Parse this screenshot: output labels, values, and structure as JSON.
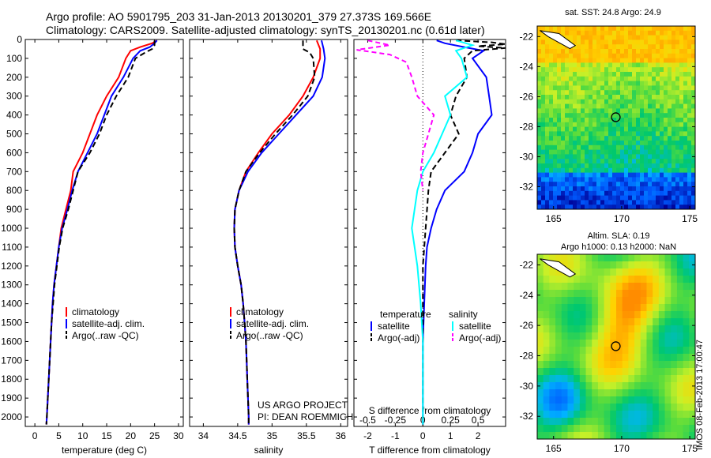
{
  "header": {
    "line1": "Argo profile: AO 5901795_203 31-Jan-2013 20130201_379 27.373S 169.566E",
    "line2": "Climatology: CARS2009. Satellite-adjusted climatology: synTS_20130201.nc (0.61d later)"
  },
  "footer": {
    "project": "US ARGO PROJECT",
    "pi": "PI: DEAN ROEMMICH",
    "stamp": "IMOS 08-Feb-2013 17:00:47"
  },
  "colors": {
    "red": "#ff0000",
    "blue": "#0000ff",
    "black": "#000000",
    "cyan": "#00ffff",
    "magenta": "#ff00ff"
  },
  "chart_data": [
    {
      "type": "line",
      "id": "temperature",
      "xlabel": "temperature (deg C)",
      "xlim": [
        -2,
        31
      ],
      "xticks": [
        0,
        5,
        10,
        15,
        20,
        25,
        30
      ],
      "ylim": [
        2050,
        0
      ],
      "yticks": [
        0,
        100,
        200,
        300,
        400,
        500,
        600,
        700,
        800,
        900,
        1000,
        1100,
        1200,
        1300,
        1400,
        1500,
        1600,
        1700,
        1800,
        1900,
        2000
      ],
      "legend": [
        "climatology",
        "satellite-adj. clim.",
        "Argo(..raw -QC)"
      ],
      "series": [
        {
          "name": "climatology",
          "color": "red",
          "dash": "",
          "points": [
            [
              25.5,
              5
            ],
            [
              24.5,
              20
            ],
            [
              22,
              40
            ],
            [
              20,
              60
            ],
            [
              19,
              100
            ],
            [
              17.5,
              200
            ],
            [
              15,
              300
            ],
            [
              13,
              400
            ],
            [
              11.5,
              500
            ],
            [
              10,
              600
            ],
            [
              8,
              700
            ],
            [
              7.5,
              800
            ],
            [
              6.5,
              900
            ],
            [
              5.5,
              1000
            ],
            [
              5,
              1100
            ],
            [
              4.5,
              1200
            ],
            [
              4,
              1300
            ],
            [
              3.7,
              1400
            ],
            [
              3.5,
              1500
            ],
            [
              3.3,
              1600
            ],
            [
              3.1,
              1700
            ],
            [
              2.9,
              1800
            ],
            [
              2.7,
              1900
            ],
            [
              2.5,
              2000
            ],
            [
              2.4,
              2040
            ]
          ]
        },
        {
          "name": "satellite-adj. clim.",
          "color": "blue",
          "dash": "",
          "points": [
            [
              25.5,
              5
            ],
            [
              25,
              20
            ],
            [
              24,
              40
            ],
            [
              22,
              60
            ],
            [
              20.5,
              100
            ],
            [
              18.5,
              200
            ],
            [
              16,
              300
            ],
            [
              14.5,
              400
            ],
            [
              13,
              500
            ],
            [
              11,
              600
            ],
            [
              9,
              700
            ],
            [
              7.8,
              800
            ],
            [
              6.8,
              900
            ],
            [
              5.7,
              1000
            ],
            [
              5,
              1100
            ],
            [
              4.5,
              1200
            ],
            [
              4,
              1300
            ],
            [
              3.7,
              1400
            ],
            [
              3.5,
              1500
            ],
            [
              3.3,
              1600
            ],
            [
              3.1,
              1700
            ],
            [
              2.9,
              1800
            ],
            [
              2.7,
              1900
            ],
            [
              2.5,
              2000
            ],
            [
              2.4,
              2040
            ]
          ]
        },
        {
          "name": "Argo(..raw -QC)",
          "color": "black",
          "dash": "7,4",
          "points": [
            [
              25,
              5
            ],
            [
              25,
              30
            ],
            [
              24.5,
              50
            ],
            [
              23,
              70
            ],
            [
              21,
              100
            ],
            [
              19.5,
              200
            ],
            [
              17,
              300
            ],
            [
              15,
              400
            ],
            [
              13.5,
              500
            ],
            [
              11.5,
              600
            ],
            [
              9,
              700
            ],
            [
              8,
              800
            ],
            [
              7,
              900
            ],
            [
              5.8,
              1000
            ],
            [
              5.1,
              1100
            ],
            [
              4.6,
              1200
            ],
            [
              4.1,
              1300
            ],
            [
              3.8,
              1400
            ],
            [
              3.5,
              1500
            ],
            [
              3.3,
              1600
            ],
            [
              3.1,
              1700
            ],
            [
              2.9,
              1800
            ],
            [
              2.7,
              1900
            ],
            [
              2.5,
              2000
            ],
            [
              2.4,
              2040
            ]
          ]
        }
      ]
    },
    {
      "type": "line",
      "id": "salinity",
      "xlabel": "salinity",
      "xlim": [
        33.8,
        36.1
      ],
      "xticks": [
        34,
        34.5,
        35,
        35.5,
        36
      ],
      "xtick_labels": [
        "34",
        "34.5",
        "35",
        "35.5",
        "36"
      ],
      "ylim": [
        2050,
        0
      ],
      "legend": [
        "climatology",
        "satellite-adj. clim.",
        "Argo(..raw -QC)"
      ],
      "series": [
        {
          "name": "climatology",
          "color": "red",
          "dash": "",
          "points": [
            [
              35.65,
              5
            ],
            [
              35.7,
              50
            ],
            [
              35.7,
              100
            ],
            [
              35.6,
              200
            ],
            [
              35.45,
              300
            ],
            [
              35.25,
              400
            ],
            [
              35.0,
              500
            ],
            [
              34.8,
              600
            ],
            [
              34.62,
              700
            ],
            [
              34.52,
              800
            ],
            [
              34.46,
              900
            ],
            [
              34.45,
              1000
            ],
            [
              34.46,
              1100
            ],
            [
              34.5,
              1200
            ],
            [
              34.55,
              1300
            ],
            [
              34.58,
              1400
            ],
            [
              34.6,
              1500
            ],
            [
              34.62,
              1600
            ],
            [
              34.63,
              1700
            ],
            [
              34.64,
              1800
            ],
            [
              34.65,
              1900
            ],
            [
              34.66,
              2000
            ],
            [
              34.66,
              2040
            ]
          ]
        },
        {
          "name": "satellite-adj. clim.",
          "color": "blue",
          "dash": "",
          "points": [
            [
              35.72,
              5
            ],
            [
              35.75,
              50
            ],
            [
              35.77,
              100
            ],
            [
              35.73,
              200
            ],
            [
              35.6,
              300
            ],
            [
              35.35,
              400
            ],
            [
              35.1,
              500
            ],
            [
              34.85,
              600
            ],
            [
              34.65,
              700
            ],
            [
              34.52,
              800
            ],
            [
              34.46,
              900
            ],
            [
              34.45,
              1000
            ],
            [
              34.46,
              1100
            ],
            [
              34.5,
              1200
            ],
            [
              34.55,
              1300
            ],
            [
              34.58,
              1400
            ],
            [
              34.6,
              1500
            ],
            [
              34.62,
              1600
            ],
            [
              34.63,
              1700
            ],
            [
              34.64,
              1800
            ],
            [
              34.65,
              1900
            ],
            [
              34.66,
              2000
            ],
            [
              34.66,
              2040
            ]
          ]
        },
        {
          "name": "Argo(..raw -QC)",
          "color": "black",
          "dash": "7,4",
          "points": [
            [
              35.45,
              5
            ],
            [
              35.45,
              50
            ],
            [
              35.55,
              70
            ],
            [
              35.6,
              100
            ],
            [
              35.62,
              200
            ],
            [
              35.52,
              300
            ],
            [
              35.3,
              400
            ],
            [
              35.05,
              500
            ],
            [
              34.82,
              600
            ],
            [
              34.62,
              700
            ],
            [
              34.52,
              800
            ],
            [
              34.46,
              900
            ],
            [
              34.45,
              1000
            ],
            [
              34.46,
              1100
            ],
            [
              34.5,
              1200
            ],
            [
              34.55,
              1300
            ],
            [
              34.58,
              1400
            ],
            [
              34.6,
              1500
            ],
            [
              34.62,
              1600
            ],
            [
              34.63,
              1700
            ],
            [
              34.64,
              1800
            ],
            [
              34.65,
              1900
            ],
            [
              34.66,
              2000
            ],
            [
              34.66,
              2040
            ]
          ]
        }
      ]
    },
    {
      "type": "line",
      "id": "difference",
      "xlabel": "T difference from climatology",
      "xlabel_top": "S difference from climatology",
      "xlim": [
        -2.5,
        3
      ],
      "xticks": [
        -2,
        -1,
        0,
        1,
        2
      ],
      "xticks_s": [
        -0.5,
        -0.25,
        0,
        0.25,
        0.5
      ],
      "xticks_s_labels": [
        "-0.5",
        "-0.25",
        "0",
        "0.25",
        "0.5"
      ],
      "legend_left": {
        "title": "temperature",
        "items": [
          "satellite",
          "Argo(-adj)"
        ]
      },
      "legend_right": {
        "title": "salinity",
        "items": [
          "satellite",
          "Argo(-adj)"
        ]
      },
      "series": [
        {
          "name": "T satellite",
          "color": "blue",
          "dash": "",
          "points": [
            [
              0.5,
              5
            ],
            [
              0.8,
              20
            ],
            [
              1.5,
              40
            ],
            [
              2.2,
              60
            ],
            [
              1.8,
              100
            ],
            [
              2.3,
              200
            ],
            [
              2.4,
              300
            ],
            [
              2.5,
              400
            ],
            [
              2.0,
              500
            ],
            [
              1.8,
              600
            ],
            [
              1.5,
              700
            ],
            [
              0.8,
              800
            ],
            [
              0.5,
              900
            ],
            [
              0.3,
              1000
            ],
            [
              0.15,
              1100
            ],
            [
              0.1,
              1200
            ],
            [
              0.05,
              1400
            ],
            [
              0.0,
              1600
            ],
            [
              0.0,
              2040
            ]
          ]
        },
        {
          "name": "T Argo(-adj)",
          "color": "black",
          "dash": "7,4",
          "points": [
            [
              1.2,
              5
            ],
            [
              2.5,
              15
            ],
            [
              3.0,
              25
            ],
            [
              2.0,
              35
            ],
            [
              3.0,
              45
            ],
            [
              1.8,
              60
            ],
            [
              1.5,
              100
            ],
            [
              1.6,
              200
            ],
            [
              1.2,
              300
            ],
            [
              1.0,
              400
            ],
            [
              1.3,
              500
            ],
            [
              0.8,
              600
            ],
            [
              0.3,
              700
            ],
            [
              0.2,
              800
            ],
            [
              0.1,
              1000
            ],
            [
              0.0,
              1200
            ],
            [
              0.0,
              2040
            ]
          ]
        },
        {
          "name": "S satellite",
          "color": "cyan",
          "dash": "",
          "points": [
            [
              0.3,
              5
            ],
            [
              0.45,
              30
            ],
            [
              0.3,
              60
            ],
            [
              0.35,
              100
            ],
            [
              0.4,
              200
            ],
            [
              0.2,
              300
            ],
            [
              0.25,
              400
            ],
            [
              0.1,
              600
            ],
            [
              0.0,
              700
            ],
            [
              -0.05,
              800
            ],
            [
              -0.1,
              1000
            ],
            [
              -0.05,
              1200
            ],
            [
              -0.02,
              1400
            ],
            [
              0.0,
              1600
            ],
            [
              0.0,
              2040
            ]
          ]
        },
        {
          "name": "S Argo(-adj)",
          "color": "magenta",
          "dash": "6,4",
          "points": [
            [
              -0.5,
              5
            ],
            [
              -0.3,
              30
            ],
            [
              -0.6,
              55
            ],
            [
              -0.3,
              80
            ],
            [
              -0.15,
              120
            ],
            [
              -0.1,
              200
            ],
            [
              -0.05,
              300
            ],
            [
              0.1,
              400
            ],
            [
              0.05,
              500
            ],
            [
              0.0,
              600
            ],
            [
              -0.02,
              700
            ],
            [
              0.0,
              800
            ]
          ]
        }
      ]
    },
    {
      "type": "heatmap",
      "id": "sst-map",
      "title": "sat. SST: 24.8 Argo: 24.9",
      "xticks": [
        165,
        170,
        175
      ],
      "yticks": [
        -22,
        -24,
        -26,
        -28,
        -30,
        -32
      ],
      "xlim": [
        163.8,
        175.4
      ],
      "ylim": [
        -33.5,
        -21.3
      ],
      "marker": [
        169.57,
        -27.37
      ]
    },
    {
      "type": "heatmap",
      "id": "sla-map",
      "title": "Altim. SLA: 0.19",
      "subtitle": "Argo h1000: 0.13 h2000: NaN",
      "xticks": [
        165,
        170,
        175
      ],
      "yticks": [
        -22,
        -24,
        -26,
        -28,
        -30,
        -32
      ],
      "xlim": [
        163.8,
        175.4
      ],
      "ylim": [
        -33.5,
        -21.3
      ],
      "marker": [
        169.57,
        -27.37
      ]
    }
  ]
}
